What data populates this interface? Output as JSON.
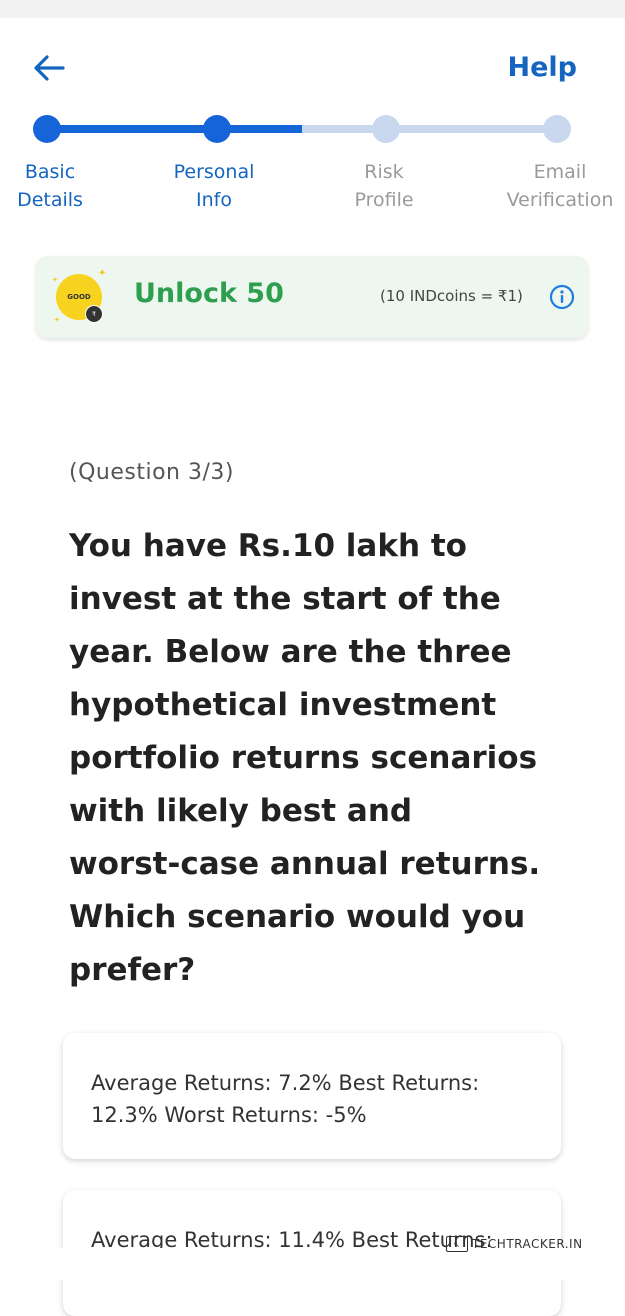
{
  "header": {
    "help_label": "Help"
  },
  "stepper": {
    "steps": [
      {
        "line1": "Basic",
        "line2": "Details",
        "state": "done"
      },
      {
        "line1": "Personal",
        "line2": "Info",
        "state": "current"
      },
      {
        "line1": "Risk",
        "line2": "Profile",
        "state": "todo"
      },
      {
        "line1": "Email",
        "line2": "Verification",
        "state": "todo"
      }
    ]
  },
  "banner": {
    "unlock_text": "Unlock 50",
    "coin_rate": "(10 INDcoins = ₹1)",
    "badge_text": "GOOD"
  },
  "question": {
    "counter": "(Question 3/3)",
    "lines": [
      "You have Rs.10 lakh to",
      "invest at the start of the",
      "year. Below are the three",
      "hypothetical investment",
      "portfolio returns scenarios",
      "with likely best and",
      "worst-case annual returns.",
      "Which scenario would you",
      "prefer?"
    ]
  },
  "options": [
    {
      "line1": "Average Returns: 7.2% Best Returns:",
      "line2": "12.3% Worst Returns: -5%"
    },
    {
      "line1": "Average Returns: 11.4% Best Returns:",
      "line2": ""
    }
  ],
  "watermark": {
    "text": "TECHTRACKER.IN"
  },
  "colors": {
    "accent": "#1565c0",
    "step_done": "#1565d8",
    "step_todo": "#c9d8ee",
    "unlock_green": "#2e9e4f",
    "banner_bg": "#eef7ef"
  }
}
